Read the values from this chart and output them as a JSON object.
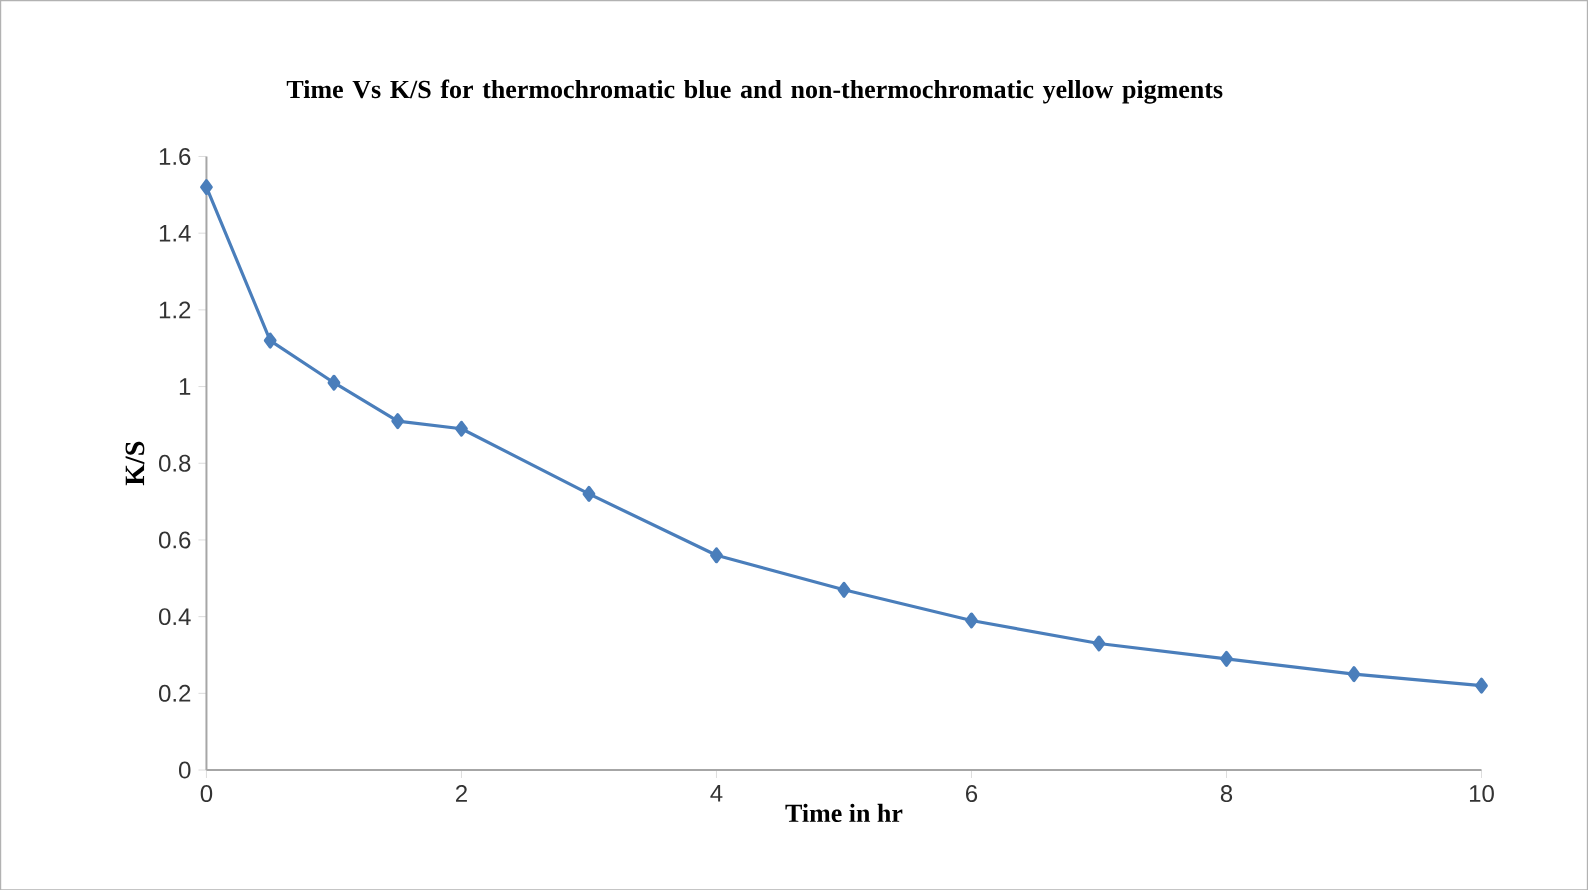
{
  "chart_data": {
    "type": "line",
    "title": "Time Vs K/S for thermochromatic blue and non-thermochromatic yellow pigments",
    "xlabel": "Time in hr",
    "ylabel": "K/S",
    "x": [
      0,
      0.5,
      1,
      1.5,
      2,
      3,
      4,
      5,
      6,
      7,
      8,
      9,
      10
    ],
    "series": [
      {
        "color": "#4a7ebb",
        "values": [
          1.52,
          1.12,
          1.01,
          0.91,
          0.89,
          0.72,
          0.56,
          0.47,
          0.39,
          0.33,
          0.29,
          0.25,
          0.22
        ]
      }
    ],
    "xlim": [
      0,
      10
    ],
    "xticks": [
      0,
      2,
      4,
      6,
      8,
      10
    ],
    "ylim": [
      0,
      1.6
    ],
    "yticks": [
      0,
      0.2,
      0.4,
      0.6,
      0.8,
      1,
      1.2,
      1.4,
      1.6
    ],
    "marker": "diamond",
    "line_style": "solid",
    "grid": false
  }
}
